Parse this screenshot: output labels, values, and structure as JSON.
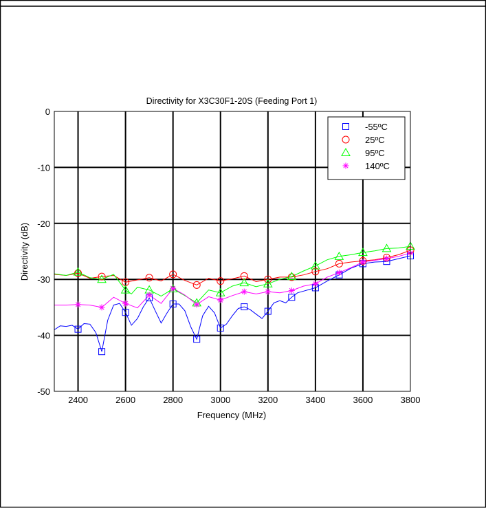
{
  "chart_data": {
    "type": "line",
    "title": "Directivity for X3C30F1-20S (Feeding Port 1)",
    "xlabel": "Frequency (MHz)",
    "ylabel": "Directivity (dB)",
    "xlim": [
      2300,
      3800
    ],
    "ylim": [
      -50,
      0
    ],
    "xticks": [
      2400,
      2600,
      2800,
      3000,
      3200,
      3400,
      3600,
      3800
    ],
    "yticks": [
      0,
      -10,
      -20,
      -30,
      -40,
      -50
    ],
    "grid": true,
    "legend_position": "top-right",
    "marker_x": [
      2400,
      2500,
      2600,
      2700,
      2800,
      2900,
      3000,
      3100,
      3200,
      3300,
      3400,
      3500,
      3600,
      3700,
      3800
    ],
    "series": [
      {
        "name": "-55ºC",
        "color": "#0000ff",
        "marker": "square",
        "x": [
          2300,
          2325,
          2350,
          2375,
          2400,
          2425,
          2450,
          2475,
          2500,
          2525,
          2550,
          2575,
          2600,
          2625,
          2650,
          2675,
          2700,
          2725,
          2750,
          2775,
          2800,
          2825,
          2850,
          2875,
          2900,
          2925,
          2950,
          2975,
          3000,
          3025,
          3050,
          3075,
          3100,
          3125,
          3150,
          3175,
          3200,
          3225,
          3250,
          3275,
          3300,
          3325,
          3350,
          3375,
          3400,
          3450,
          3500,
          3550,
          3600,
          3650,
          3700,
          3750,
          3800
        ],
        "values": [
          -39.0,
          -38.3,
          -38.4,
          -38.2,
          -38.9,
          -37.9,
          -38.0,
          -39.5,
          -42.9,
          -37.3,
          -34.6,
          -34.3,
          -35.9,
          -38.2,
          -37.0,
          -34.9,
          -33.3,
          -35.6,
          -37.8,
          -36.0,
          -34.4,
          -34.4,
          -35.6,
          -38.5,
          -40.7,
          -36.5,
          -34.8,
          -36.0,
          -38.7,
          -38.0,
          -36.5,
          -35.2,
          -34.9,
          -35.4,
          -36.2,
          -37.0,
          -35.7,
          -34.2,
          -33.8,
          -34.2,
          -33.2,
          -32.4,
          -32.1,
          -31.8,
          -31.5,
          -30.3,
          -29.2,
          -28.0,
          -27.2,
          -26.9,
          -26.8,
          -26.3,
          -25.8
        ],
        "markers": [
          -38.9,
          -42.9,
          -35.9,
          -33.3,
          -34.4,
          -40.7,
          -38.7,
          -34.9,
          -35.7,
          -33.2,
          -31.5,
          -29.2,
          -27.2,
          -26.8,
          -25.8
        ]
      },
      {
        "name": "25ºC",
        "color": "#ff0000",
        "marker": "circle",
        "x": [
          2300,
          2350,
          2400,
          2450,
          2500,
          2550,
          2600,
          2650,
          2700,
          2750,
          2800,
          2850,
          2900,
          2950,
          3000,
          3050,
          3100,
          3150,
          3200,
          3250,
          3300,
          3350,
          3400,
          3450,
          3500,
          3550,
          3600,
          3650,
          3700,
          3750,
          3800
        ],
        "values": [
          -29.1,
          -29.3,
          -28.9,
          -29.8,
          -29.5,
          -29.3,
          -30.5,
          -30.1,
          -29.7,
          -30.3,
          -29.1,
          -30.2,
          -31.0,
          -29.8,
          -30.3,
          -29.9,
          -29.4,
          -30.4,
          -30.0,
          -29.6,
          -29.6,
          -29.2,
          -28.6,
          -28.1,
          -27.2,
          -26.9,
          -26.7,
          -26.5,
          -26.1,
          -25.6,
          -24.8
        ],
        "markers": [
          -28.9,
          -29.5,
          -30.5,
          -29.7,
          -29.1,
          -31.0,
          -30.3,
          -29.4,
          -30.0,
          -29.6,
          -28.6,
          -27.2,
          -26.7,
          -26.1,
          -24.8
        ]
      },
      {
        "name": "95ºC",
        "color": "#00ff00",
        "marker": "triangle",
        "x": [
          2300,
          2350,
          2400,
          2450,
          2500,
          2550,
          2600,
          2625,
          2650,
          2700,
          2750,
          2800,
          2825,
          2850,
          2900,
          2950,
          3000,
          3050,
          3100,
          3150,
          3200,
          3250,
          3300,
          3350,
          3400,
          3450,
          3500,
          3550,
          3600,
          3650,
          3700,
          3750,
          3800
        ],
        "values": [
          -29.0,
          -29.3,
          -28.7,
          -29.7,
          -30.0,
          -29.1,
          -31.9,
          -32.6,
          -31.4,
          -31.9,
          -33.0,
          -31.7,
          -32.3,
          -32.9,
          -34.2,
          -31.9,
          -32.4,
          -31.2,
          -30.6,
          -31.3,
          -30.8,
          -30.0,
          -29.5,
          -28.5,
          -27.6,
          -26.5,
          -25.9,
          -25.6,
          -25.2,
          -24.9,
          -24.5,
          -24.4,
          -24.1
        ],
        "markers": [
          -28.7,
          -30.0,
          -31.9,
          -31.9,
          -31.7,
          -34.2,
          -32.4,
          -30.6,
          -30.8,
          -29.5,
          -27.6,
          -25.9,
          -25.2,
          -24.5,
          -24.1
        ]
      },
      {
        "name": "140ºC",
        "color": "#ff00ff",
        "marker": "asterisk",
        "x": [
          2300,
          2350,
          2400,
          2450,
          2500,
          2550,
          2600,
          2650,
          2700,
          2750,
          2800,
          2850,
          2900,
          2950,
          3000,
          3050,
          3100,
          3150,
          3200,
          3250,
          3300,
          3350,
          3400,
          3450,
          3500,
          3550,
          3600,
          3650,
          3700,
          3750,
          3800
        ],
        "values": [
          -34.6,
          -34.6,
          -34.5,
          -34.6,
          -35.0,
          -33.2,
          -34.3,
          -35.1,
          -32.8,
          -34.3,
          -31.6,
          -32.8,
          -34.5,
          -33.1,
          -33.7,
          -32.9,
          -32.2,
          -32.6,
          -32.2,
          -32.4,
          -32.0,
          -31.2,
          -30.8,
          -29.6,
          -28.8,
          -27.9,
          -26.9,
          -26.6,
          -26.3,
          -25.9,
          -25.3
        ],
        "markers": [
          -34.5,
          -35.0,
          -34.3,
          -32.8,
          -31.6,
          -34.5,
          -33.7,
          -32.2,
          -32.2,
          -32.0,
          -30.8,
          -28.8,
          -26.9,
          -26.3,
          -25.3
        ]
      }
    ]
  }
}
